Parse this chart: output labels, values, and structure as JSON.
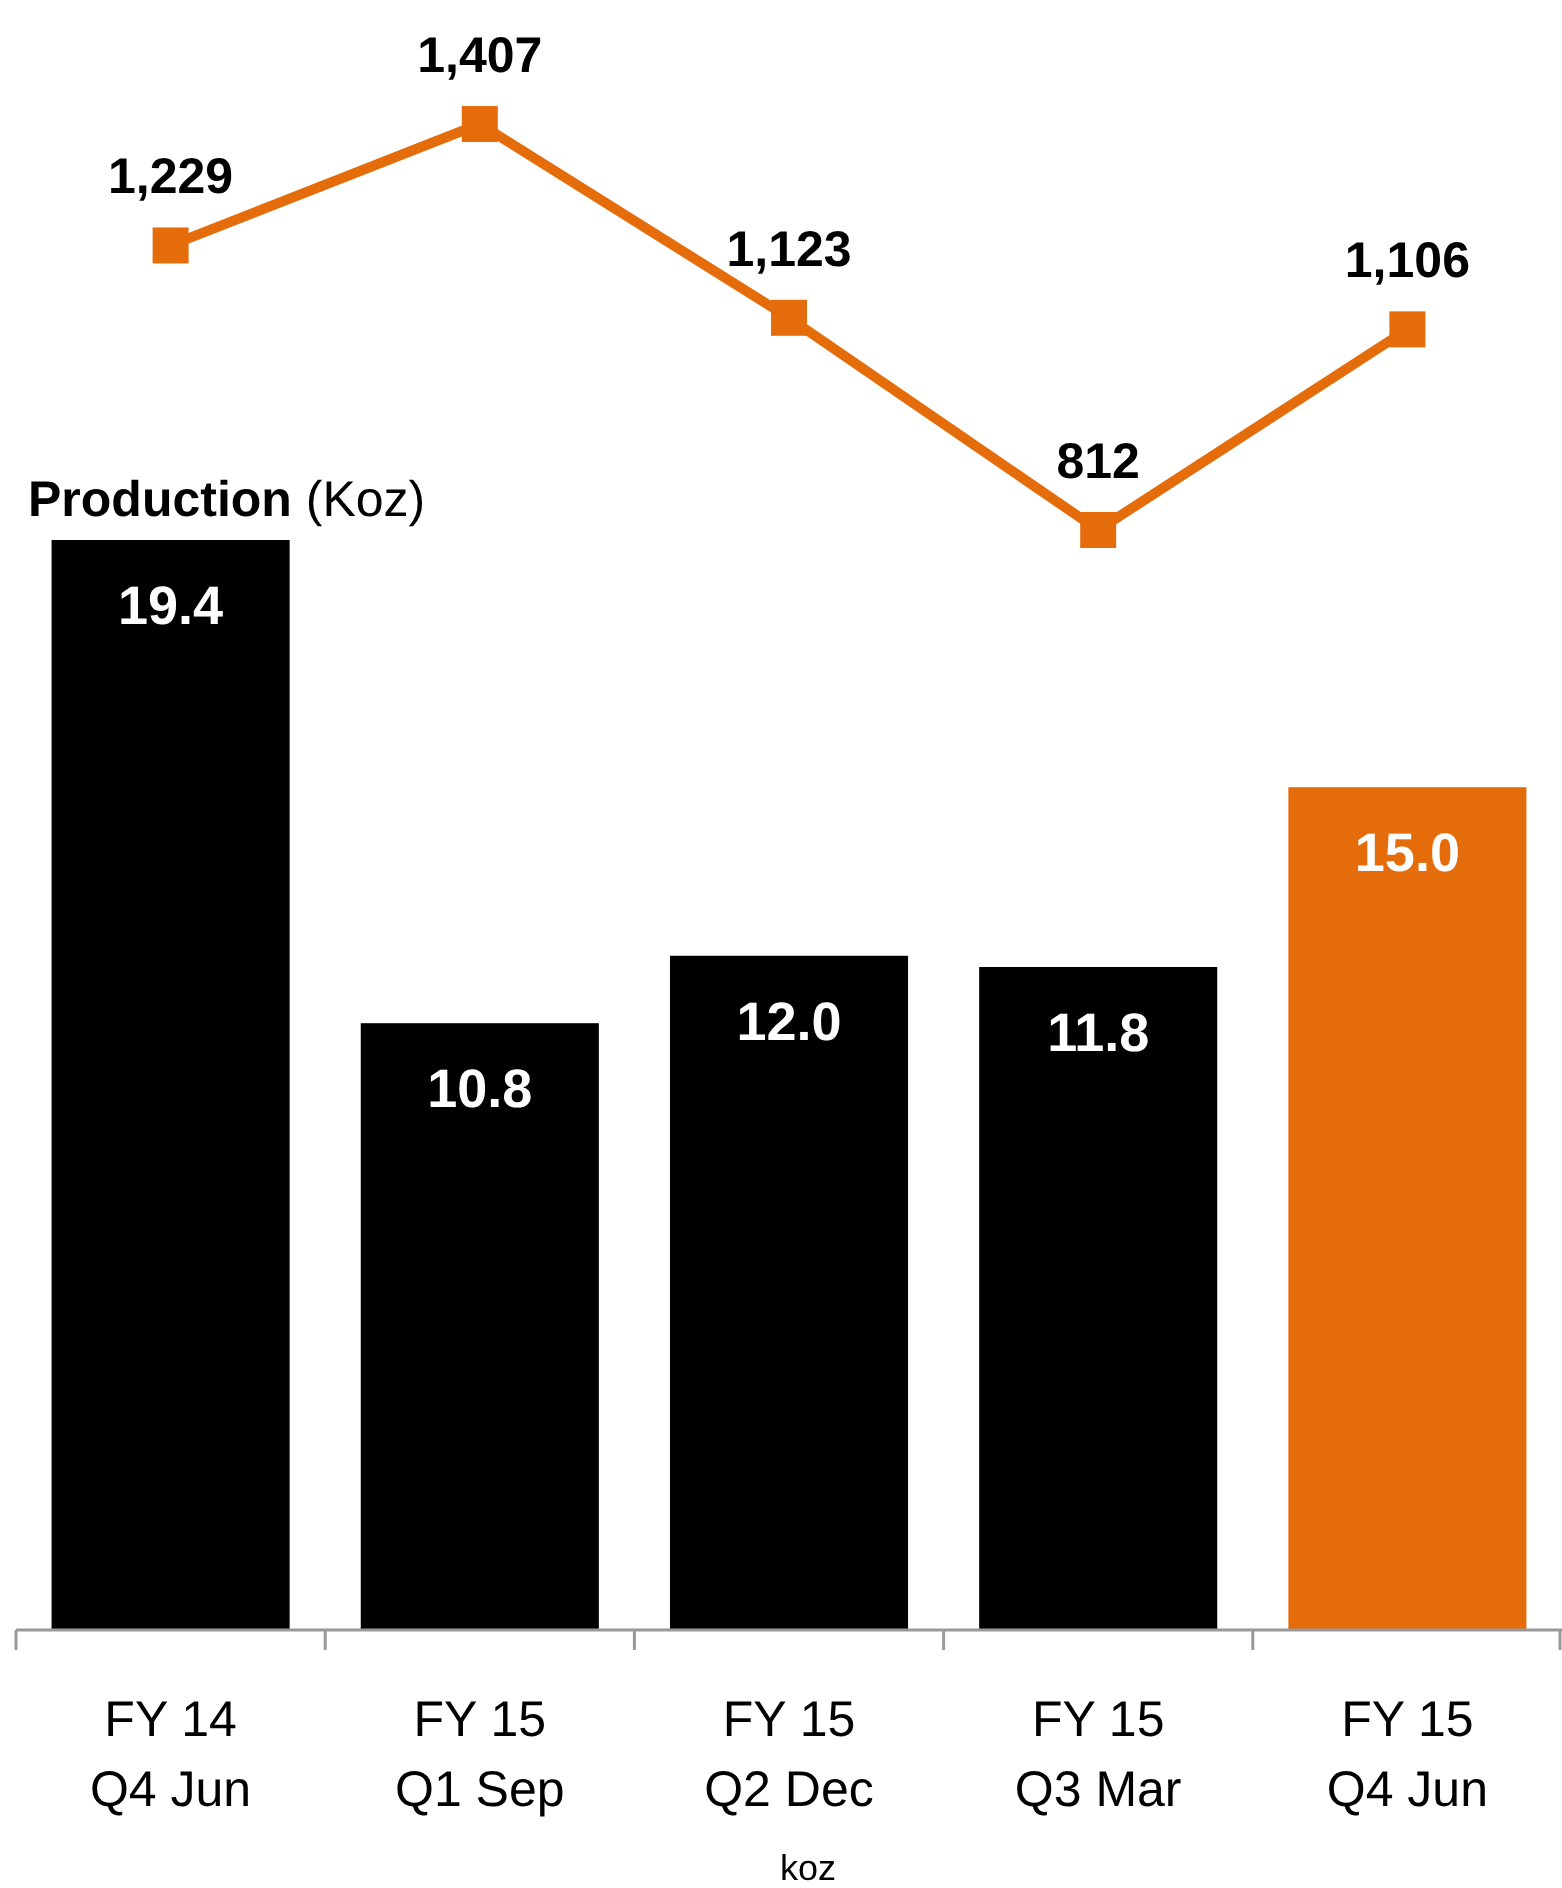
{
  "chart_data": [
    {
      "type": "line",
      "categories": [
        null,
        null,
        null,
        null,
        null
      ],
      "series": [
        {
          "color": "#e46c0a",
          "values": [
            1229,
            1407,
            1123,
            812,
            1106
          ],
          "value_labels": [
            "1,229",
            "1,407",
            "1,123",
            "812",
            "1,106"
          ]
        }
      ],
      "marker": "square",
      "line_style": "solid"
    },
    {
      "type": "bar",
      "title": "Production (Koz)",
      "xlabel": "koz",
      "categories": [
        "FY 14\nQ4 Jun",
        "FY 15\nQ1 Sep",
        "FY 15\nQ2 Dec",
        "FY 15\nQ3 Mar",
        "FY 15\nQ4 Jun"
      ],
      "series": [
        {
          "colors": [
            "#000000",
            "#000000",
            "#000000",
            "#000000",
            "#e46c0a"
          ],
          "values": [
            19.4,
            10.8,
            12.0,
            11.8,
            15.0
          ],
          "value_labels": [
            "19.4",
            "10.8",
            "12.0",
            "11.8",
            "15.0"
          ]
        }
      ]
    }
  ]
}
